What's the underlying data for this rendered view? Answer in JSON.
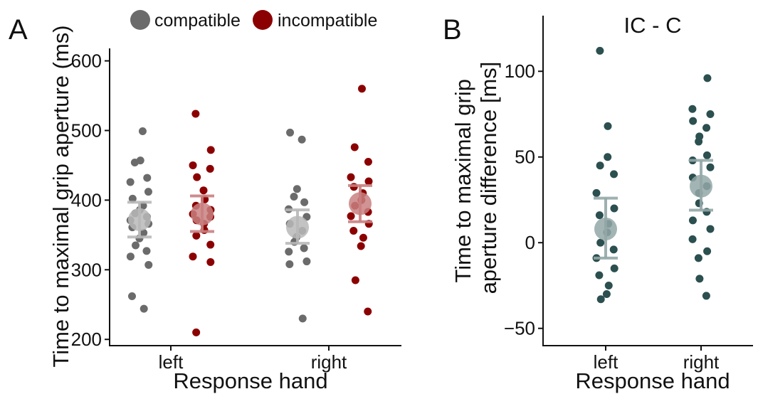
{
  "legend": {
    "placement": "top-center",
    "items": [
      {
        "label": "compatible",
        "color": "#6b6b6b"
      },
      {
        "label": "incompatible",
        "color": "#8b0000"
      }
    ]
  },
  "chart_data": [
    {
      "panel_label": "A",
      "type": "scatter",
      "title": "",
      "xlabel": "Response hand",
      "ylabel": "Time to maximal grip aperture (ms)",
      "ylim": [
        190,
        620
      ],
      "yticks": [
        200,
        300,
        400,
        500,
        600
      ],
      "categories": [
        "left",
        "right"
      ],
      "grid": false,
      "series": [
        {
          "name": "compatible",
          "color": "#6b6b6b",
          "mean_color": "#b8b8b8",
          "errbar_color": "#b8b8b8",
          "offset": -0.5,
          "groups": [
            {
              "category": "left",
              "mean": 372,
              "error_low": 347,
              "error_high": 397,
              "points": [
                499,
                457,
                454,
                432,
                426,
                412,
                402,
                392,
                386,
                381,
                376,
                371,
                366,
                361,
                353,
                345,
                335,
                327,
                319,
                307,
                262,
                244
              ]
            },
            {
              "category": "right",
              "mean": 361,
              "error_low": 338,
              "error_high": 386,
              "points": [
                497,
                487,
                416,
                405,
                397,
                387,
                376,
                366,
                356,
                347,
                340,
                331,
                326,
                312,
                308,
                230
              ]
            }
          ]
        },
        {
          "name": "incompatible",
          "color": "#8b0000",
          "mean_color": "#c98080",
          "errbar_color": "#c98080",
          "offset": 0.5,
          "groups": [
            {
              "category": "left",
              "mean": 380,
              "error_low": 355,
              "error_high": 406,
              "points": [
                524,
                472,
                450,
                445,
                433,
                414,
                401,
                392,
                386,
                380,
                376,
                371,
                366,
                357,
                349,
                336,
                319,
                311,
                210
              ]
            },
            {
              "category": "right",
              "mean": 395,
              "error_low": 369,
              "error_high": 421,
              "points": [
                560,
                476,
                455,
                433,
                427,
                419,
                410,
                400,
                392,
                383,
                377,
                366,
                356,
                346,
                334,
                285,
                240
              ]
            }
          ]
        }
      ]
    },
    {
      "panel_label": "B",
      "type": "scatter",
      "title": "IC - C",
      "xlabel": "Response hand",
      "ylabel_lines": [
        "Time to maximal grip",
        "aperture difference [ms]"
      ],
      "ylim": [
        -58,
        125
      ],
      "yticks": [
        -50,
        0,
        50,
        100
      ],
      "categories": [
        "left",
        "right"
      ],
      "grid": false,
      "series": [
        {
          "name": "",
          "color": "#2c4f4f",
          "mean_color": "#93a7a7",
          "errbar_color": "#93a7a7",
          "groups": [
            {
              "category": "left",
              "mean": 8,
              "error_low": -9,
              "error_high": 26,
              "points": [
                112,
                68,
                50,
                45,
                40,
                29,
                20,
                16,
                11,
                6,
                0,
                -4,
                -9,
                -15,
                -19,
                -25,
                -30,
                -33
              ]
            },
            {
              "category": "right",
              "mean": 33,
              "error_low": 19,
              "error_high": 48,
              "points": [
                96,
                78,
                75,
                71,
                67,
                62,
                59,
                51,
                48,
                44,
                38,
                33,
                29,
                23,
                18,
                13,
                8,
                2,
                -5,
                -9,
                -21,
                -31
              ]
            }
          ]
        }
      ]
    }
  ]
}
